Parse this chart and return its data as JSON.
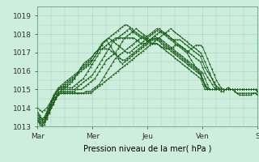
{
  "xlabel": "Pression niveau de la mer( hPa )",
  "background_color": "#ceeedd",
  "grid_color": "#aaccbb",
  "line_color": "#1a5c1a",
  "ylim": [
    1013.0,
    1019.5
  ],
  "yticks": [
    1013,
    1014,
    1015,
    1016,
    1017,
    1018,
    1019
  ],
  "xtick_labels": [
    "Mar",
    "Mer",
    "Jeu",
    "Ven",
    "S"
  ],
  "xtick_positions": [
    0,
    24,
    48,
    72,
    96
  ],
  "n_points": 97,
  "series": [
    [
      1013.3,
      1013.2,
      1013.1,
      1013.3,
      1013.5,
      1013.8,
      1014.0,
      1014.2,
      1014.5,
      1014.7,
      1014.8,
      1014.8,
      1014.8,
      1014.8,
      1014.8,
      1014.8,
      1014.8,
      1014.8,
      1014.8,
      1014.8,
      1014.8,
      1014.8,
      1014.8,
      1014.8,
      1014.9,
      1015.0,
      1015.1,
      1015.2,
      1015.3,
      1015.4,
      1015.5,
      1015.6,
      1015.7,
      1015.8,
      1015.9,
      1016.0,
      1016.1,
      1016.2,
      1016.3,
      1016.4,
      1016.5,
      1016.6,
      1016.7,
      1016.8,
      1016.9,
      1017.0,
      1017.1,
      1017.2,
      1017.3,
      1017.4,
      1017.5,
      1017.6,
      1017.7,
      1017.8,
      1017.9,
      1018.0,
      1018.1,
      1018.2,
      1018.3,
      1018.2,
      1018.1,
      1018.0,
      1017.9,
      1017.8,
      1017.7,
      1017.6,
      1017.5,
      1017.4,
      1017.3,
      1017.2,
      1017.1,
      1017.0,
      1016.8,
      1016.5,
      1016.2,
      1015.9,
      1015.6,
      1015.3,
      1015.1,
      1015.0,
      1014.9,
      1014.9,
      1015.0,
      1015.1,
      1015.0,
      1015.0,
      1014.9,
      1014.8,
      1014.7,
      1014.7,
      1014.7,
      1014.7,
      1014.7,
      1014.7,
      1014.8,
      1014.8,
      1014.7
    ],
    [
      1013.5,
      1013.4,
      1013.3,
      1013.4,
      1013.6,
      1013.9,
      1014.1,
      1014.3,
      1014.5,
      1014.7,
      1014.8,
      1014.8,
      1014.8,
      1014.8,
      1014.8,
      1014.8,
      1014.8,
      1014.8,
      1014.8,
      1014.8,
      1014.8,
      1014.9,
      1014.9,
      1014.9,
      1015.0,
      1015.1,
      1015.2,
      1015.3,
      1015.5,
      1015.7,
      1015.9,
      1016.1,
      1016.3,
      1016.5,
      1016.7,
      1016.8,
      1016.9,
      1017.0,
      1017.1,
      1017.2,
      1017.3,
      1017.4,
      1017.5,
      1017.6,
      1017.7,
      1017.8,
      1017.9,
      1017.8,
      1017.7,
      1017.6,
      1017.5,
      1017.5,
      1017.5,
      1017.4,
      1017.3,
      1017.3,
      1017.2,
      1017.2,
      1017.2,
      1017.3,
      1017.4,
      1017.4,
      1017.4,
      1017.3,
      1017.2,
      1017.1,
      1017.1,
      1017.2,
      1017.3,
      1017.4,
      1017.4,
      1017.4,
      1017.3,
      1017.0,
      1016.7,
      1016.4,
      1016.1,
      1015.8,
      1015.5,
      1015.3,
      1015.1,
      1015.0,
      1015.0,
      1015.1,
      1015.0,
      1015.0,
      1014.9,
      1014.8,
      1014.8,
      1014.8,
      1014.8,
      1014.8,
      1014.8,
      1014.8,
      1014.8,
      1014.8,
      1014.7
    ],
    [
      1013.6,
      1013.5,
      1013.4,
      1013.5,
      1013.7,
      1014.0,
      1014.2,
      1014.5,
      1014.6,
      1014.8,
      1014.9,
      1014.9,
      1014.9,
      1014.9,
      1014.9,
      1014.9,
      1014.9,
      1015.0,
      1015.0,
      1015.0,
      1015.1,
      1015.2,
      1015.3,
      1015.4,
      1015.5,
      1015.6,
      1015.8,
      1016.0,
      1016.2,
      1016.4,
      1016.6,
      1016.7,
      1016.8,
      1016.9,
      1017.0,
      1017.2,
      1017.4,
      1017.6,
      1017.8,
      1017.9,
      1018.0,
      1018.1,
      1018.2,
      1018.3,
      1018.2,
      1018.1,
      1018.0,
      1017.9,
      1017.8,
      1017.7,
      1017.7,
      1017.7,
      1017.8,
      1017.8,
      1017.7,
      1017.6,
      1017.5,
      1017.4,
      1017.3,
      1017.2,
      1017.1,
      1017.0,
      1016.9,
      1016.8,
      1016.7,
      1016.6,
      1016.5,
      1016.4,
      1016.3,
      1016.2,
      1016.1,
      1016.0,
      1015.9,
      1015.6,
      1015.3,
      1015.0,
      1015.0,
      1015.0,
      1015.0,
      1015.0,
      1015.0,
      1015.0,
      1015.0,
      1015.0,
      1015.0,
      1015.0,
      1015.0,
      1015.0,
      1015.0,
      1015.0,
      1015.0,
      1015.0,
      1015.0,
      1015.0,
      1015.0,
      1015.0,
      1014.9
    ],
    [
      1013.7,
      1013.5,
      1013.4,
      1013.5,
      1013.7,
      1014.0,
      1014.3,
      1014.6,
      1014.8,
      1015.0,
      1015.0,
      1015.0,
      1015.0,
      1015.0,
      1015.0,
      1015.0,
      1015.0,
      1015.1,
      1015.2,
      1015.3,
      1015.4,
      1015.5,
      1015.6,
      1015.7,
      1015.8,
      1016.0,
      1016.2,
      1016.4,
      1016.6,
      1016.8,
      1017.0,
      1017.2,
      1017.4,
      1017.6,
      1017.7,
      1017.8,
      1017.9,
      1018.0,
      1018.1,
      1018.2,
      1018.3,
      1018.2,
      1018.1,
      1018.0,
      1017.9,
      1017.8,
      1017.8,
      1017.8,
      1017.9,
      1018.0,
      1018.1,
      1018.2,
      1018.3,
      1018.2,
      1018.1,
      1018.0,
      1017.9,
      1017.8,
      1017.7,
      1017.6,
      1017.5,
      1017.4,
      1017.3,
      1017.2,
      1017.1,
      1017.0,
      1016.8,
      1016.6,
      1016.4,
      1016.2,
      1016.0,
      1015.8,
      1015.5,
      1015.2,
      1015.0,
      1015.0,
      1015.0,
      1015.0,
      1015.0,
      1015.0,
      1015.0,
      1015.0,
      1015.0,
      1015.0,
      1015.0,
      1015.0,
      1015.0,
      1015.0,
      1015.0,
      1015.0,
      1015.0,
      1015.0,
      1015.0,
      1015.0,
      1015.0,
      1015.0,
      1014.9
    ],
    [
      1013.8,
      1013.6,
      1013.4,
      1013.5,
      1013.8,
      1014.1,
      1014.4,
      1014.7,
      1014.9,
      1015.1,
      1015.1,
      1015.1,
      1015.1,
      1015.1,
      1015.1,
      1015.1,
      1015.2,
      1015.3,
      1015.4,
      1015.5,
      1015.6,
      1015.8,
      1016.0,
      1016.2,
      1016.4,
      1016.6,
      1016.8,
      1017.0,
      1017.2,
      1017.3,
      1017.4,
      1017.5,
      1017.6,
      1017.7,
      1017.8,
      1017.8,
      1017.8,
      1017.8,
      1017.8,
      1017.8,
      1017.8,
      1017.8,
      1017.8,
      1017.7,
      1017.6,
      1017.5,
      1017.5,
      1017.5,
      1017.6,
      1017.7,
      1017.8,
      1017.9,
      1018.0,
      1018.1,
      1018.2,
      1018.1,
      1018.0,
      1017.9,
      1017.8,
      1017.7,
      1017.7,
      1017.7,
      1017.7,
      1017.6,
      1017.5,
      1017.4,
      1017.3,
      1017.2,
      1017.1,
      1017.0,
      1016.9,
      1016.8,
      1016.5,
      1016.2,
      1016.0,
      1015.8,
      1015.6,
      1015.4,
      1015.2,
      1015.1,
      1015.0,
      1015.0,
      1015.0,
      1015.0,
      1015.0,
      1015.0,
      1015.0,
      1015.0,
      1015.0,
      1015.0,
      1015.0,
      1015.0,
      1015.0,
      1015.0,
      1015.0,
      1015.0,
      1014.9
    ],
    [
      1013.5,
      1013.3,
      1013.2,
      1013.3,
      1013.6,
      1013.9,
      1014.2,
      1014.5,
      1014.8,
      1015.0,
      1015.0,
      1015.1,
      1015.2,
      1015.3,
      1015.4,
      1015.5,
      1015.6,
      1015.8,
      1016.0,
      1016.2,
      1016.4,
      1016.5,
      1016.6,
      1016.7,
      1016.8,
      1017.0,
      1017.1,
      1017.3,
      1017.5,
      1017.6,
      1017.7,
      1017.8,
      1017.7,
      1017.6,
      1017.5,
      1017.4,
      1017.3,
      1017.2,
      1017.1,
      1017.0,
      1017.0,
      1017.1,
      1017.2,
      1017.3,
      1017.4,
      1017.5,
      1017.6,
      1017.7,
      1017.8,
      1017.9,
      1018.0,
      1018.1,
      1018.2,
      1018.3,
      1018.2,
      1018.1,
      1018.0,
      1017.9,
      1017.8,
      1017.7,
      1017.6,
      1017.5,
      1017.4,
      1017.3,
      1017.2,
      1017.1,
      1017.0,
      1016.9,
      1016.8,
      1016.7,
      1016.6,
      1016.5,
      1016.2,
      1015.9,
      1015.7,
      1015.5,
      1015.3,
      1015.1,
      1015.0,
      1015.0,
      1015.0,
      1015.0,
      1015.0,
      1015.0,
      1015.0,
      1015.0,
      1015.0,
      1015.0,
      1015.0,
      1015.0,
      1015.0,
      1015.0,
      1015.0,
      1015.0,
      1015.0,
      1015.0,
      1014.9
    ],
    [
      1013.4,
      1013.2,
      1013.1,
      1013.2,
      1013.5,
      1013.8,
      1014.0,
      1014.3,
      1014.6,
      1014.8,
      1014.9,
      1015.0,
      1015.1,
      1015.2,
      1015.3,
      1015.4,
      1015.6,
      1015.8,
      1016.0,
      1016.2,
      1016.3,
      1016.4,
      1016.5,
      1016.6,
      1016.8,
      1017.0,
      1017.1,
      1017.2,
      1017.2,
      1017.2,
      1017.2,
      1017.2,
      1017.1,
      1017.0,
      1016.9,
      1016.8,
      1016.7,
      1016.6,
      1016.6,
      1016.7,
      1016.8,
      1016.9,
      1017.0,
      1017.1,
      1017.2,
      1017.3,
      1017.4,
      1017.5,
      1017.6,
      1017.7,
      1017.8,
      1017.9,
      1017.8,
      1017.7,
      1017.6,
      1017.5,
      1017.4,
      1017.3,
      1017.2,
      1017.1,
      1017.0,
      1016.9,
      1016.8,
      1016.7,
      1016.6,
      1016.5,
      1016.4,
      1016.3,
      1016.2,
      1016.1,
      1016.0,
      1015.9,
      1015.6,
      1015.3,
      1015.1,
      1015.0,
      1015.0,
      1015.0,
      1015.0,
      1015.0,
      1015.0,
      1015.0,
      1015.0,
      1015.0,
      1015.0,
      1015.0,
      1015.0,
      1015.0,
      1015.0,
      1015.0,
      1015.0,
      1015.0,
      1015.0,
      1015.0,
      1015.0,
      1015.0,
      1014.9
    ],
    [
      1013.3,
      1013.1,
      1013.0,
      1013.1,
      1013.4,
      1013.7,
      1014.0,
      1014.3,
      1014.6,
      1014.9,
      1015.1,
      1015.2,
      1015.3,
      1015.4,
      1015.5,
      1015.6,
      1015.7,
      1015.8,
      1015.9,
      1016.0,
      1016.1,
      1016.2,
      1016.3,
      1016.4,
      1016.6,
      1016.8,
      1017.0,
      1017.2,
      1017.4,
      1017.6,
      1017.7,
      1017.5,
      1017.3,
      1017.1,
      1016.9,
      1016.7,
      1016.5,
      1016.4,
      1016.5,
      1016.6,
      1016.7,
      1016.8,
      1016.9,
      1017.0,
      1017.1,
      1017.2,
      1017.3,
      1017.4,
      1017.5,
      1017.6,
      1017.7,
      1017.8,
      1017.7,
      1017.6,
      1017.5,
      1017.4,
      1017.3,
      1017.2,
      1017.1,
      1017.0,
      1016.9,
      1016.8,
      1016.7,
      1016.6,
      1016.5,
      1016.4,
      1016.3,
      1016.2,
      1016.1,
      1016.0,
      1015.9,
      1015.8,
      1015.5,
      1015.2,
      1015.0,
      1015.0,
      1015.0,
      1015.0,
      1015.0,
      1015.0,
      1015.0,
      1015.0,
      1015.0,
      1015.0,
      1015.0,
      1015.0,
      1015.0,
      1015.0,
      1015.0,
      1015.0,
      1015.0,
      1015.0,
      1015.0,
      1015.0,
      1015.0,
      1015.0,
      1014.9
    ],
    [
      1014.0,
      1013.9,
      1013.8,
      1013.9,
      1014.0,
      1014.2,
      1014.4,
      1014.6,
      1014.8,
      1015.0,
      1015.2,
      1015.3,
      1015.4,
      1015.5,
      1015.6,
      1015.7,
      1015.8,
      1015.9,
      1016.0,
      1016.1,
      1016.2,
      1016.3,
      1016.4,
      1016.5,
      1016.6,
      1016.8,
      1017.0,
      1017.2,
      1017.4,
      1017.6,
      1017.7,
      1017.8,
      1017.9,
      1018.0,
      1018.1,
      1018.2,
      1018.3,
      1018.4,
      1018.5,
      1018.5,
      1018.4,
      1018.3,
      1018.2,
      1018.1,
      1018.0,
      1017.9,
      1017.8,
      1017.7,
      1017.6,
      1017.5,
      1017.5,
      1017.5,
      1017.5,
      1017.4,
      1017.3,
      1017.2,
      1017.1,
      1017.0,
      1016.9,
      1016.8,
      1016.7,
      1016.6,
      1016.5,
      1016.4,
      1016.3,
      1016.2,
      1016.1,
      1016.0,
      1015.9,
      1015.8,
      1015.7,
      1015.6,
      1015.3,
      1015.0,
      1015.0,
      1015.0,
      1015.0,
      1015.0,
      1015.0,
      1015.0,
      1015.0,
      1015.0,
      1015.0,
      1015.0,
      1015.0,
      1015.0,
      1015.0,
      1015.0,
      1015.0,
      1015.0,
      1015.0,
      1015.0,
      1015.0,
      1015.0,
      1015.0,
      1015.0,
      1014.9
    ]
  ]
}
